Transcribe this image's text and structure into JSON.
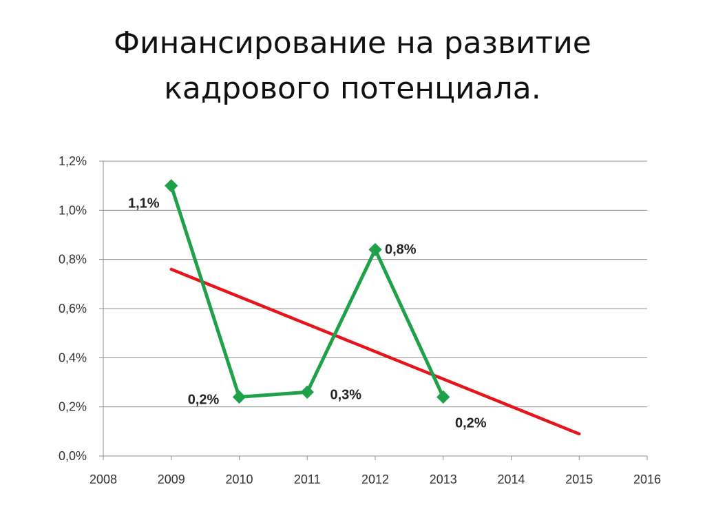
{
  "slide": {
    "title_line1": "Финансирование на развитие",
    "title_line2": "кадрового потенциала."
  },
  "chart_data": {
    "type": "line",
    "title": "",
    "xlabel": "",
    "ylabel": "",
    "xlim": [
      2008,
      2016
    ],
    "ylim": [
      0.0,
      1.2
    ],
    "grid": true,
    "x_ticks": [
      2008,
      2009,
      2010,
      2011,
      2012,
      2013,
      2014,
      2015,
      2016
    ],
    "x_tick_labels": [
      "2008",
      "2009",
      "2010",
      "2011",
      "2012",
      "2013",
      "2014",
      "2015",
      "2016"
    ],
    "y_ticks": [
      0.0,
      0.2,
      0.4,
      0.6,
      0.8,
      1.0,
      1.2
    ],
    "y_tick_labels": [
      "0,0%",
      "0,2%",
      "0,4%",
      "0,6%",
      "0,8%",
      "1,0%",
      "1,2%"
    ],
    "series": [
      {
        "color": "#1fa149",
        "marker": "diamond",
        "x": [
          2009,
          2010,
          2011,
          2012,
          2013
        ],
        "values": [
          1.1,
          0.24,
          0.26,
          0.84,
          0.24
        ],
        "data_labels": [
          "1,1%",
          "0,2%",
          "0,3%",
          "0,8%",
          "0,2%"
        ]
      }
    ],
    "trendline": {
      "type": "linear",
      "color": "#e8141b",
      "x": [
        2009,
        2015
      ],
      "values": [
        0.76,
        0.09
      ]
    }
  }
}
